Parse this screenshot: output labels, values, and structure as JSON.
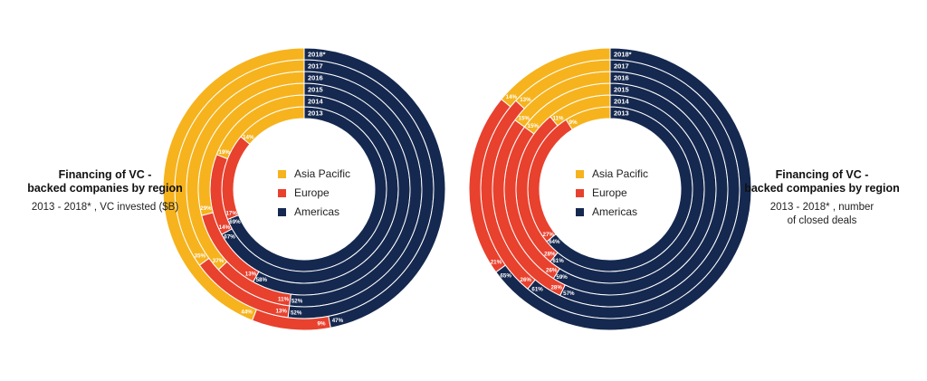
{
  "colors": {
    "Asia Pacific": "#f6b31d",
    "Europe": "#e8412e",
    "Americas": "#15284f",
    "divider": "#ffffff"
  },
  "left": {
    "title": "Financing of VC -\nbacked companies by region",
    "subtitle": "2013 - 2018* , VC invested ($B)"
  },
  "right": {
    "title": "Financing of VC -\nbacked companies by region",
    "subtitle": "2013 - 2018* , number\nof closed deals"
  },
  "legend": [
    "Asia Pacific",
    "Europe",
    "Americas"
  ],
  "chart_data": [
    {
      "type": "pie",
      "subtype": "concentric-donut",
      "title": "Financing of VC - backed companies by region",
      "subtitle": "2013 - 2018* , VC invested ($B)",
      "categories": [
        "Asia Pacific",
        "Europe",
        "Americas"
      ],
      "rings": [
        "2013",
        "2014",
        "2015",
        "2016",
        "2017",
        "2018*"
      ],
      "series": [
        {
          "name": "2013",
          "values": [
            14,
            17,
            69
          ],
          "labels": [
            "14%",
            "17%",
            "69%"
          ]
        },
        {
          "name": "2014",
          "values": [
            19,
            14,
            67
          ],
          "labels": [
            "19%",
            "14%",
            "67%"
          ]
        },
        {
          "name": "2015",
          "values": [
            29,
            13,
            58
          ],
          "labels": [
            "29%",
            "13%",
            "58%"
          ]
        },
        {
          "name": "2016",
          "values": [
            37,
            11,
            52
          ],
          "labels": [
            "37%",
            "11%",
            "52%"
          ]
        },
        {
          "name": "2017",
          "values": [
            35,
            13,
            52
          ],
          "labels": [
            "35%",
            "13%",
            "52%"
          ]
        },
        {
          "name": "2018*",
          "values": [
            44,
            9,
            47
          ],
          "labels": [
            "44%",
            "9%",
            "47%"
          ]
        }
      ]
    },
    {
      "type": "pie",
      "subtype": "concentric-donut",
      "title": "Financing of VC - backed companies by region",
      "subtitle": "2013 - 2018* , number of closed deals",
      "categories": [
        "Asia Pacific",
        "Europe",
        "Americas"
      ],
      "rings": [
        "2013",
        "2014",
        "2015",
        "2016",
        "2017",
        "2018*"
      ],
      "series": [
        {
          "name": "2013",
          "values": [
            9,
            27,
            64
          ],
          "labels": [
            "9%",
            "27%",
            "64%"
          ]
        },
        {
          "name": "2014",
          "values": [
            11,
            28,
            61
          ],
          "labels": [
            "11%",
            "28%",
            "61%"
          ]
        },
        {
          "name": "2015",
          "values": [
            15,
            26,
            59
          ],
          "labels": [
            "15%",
            "26%",
            "59%"
          ]
        },
        {
          "name": "2016",
          "values": [
            15,
            28,
            57
          ],
          "labels": [
            "15%",
            "28%",
            "57%"
          ]
        },
        {
          "name": "2017",
          "values": [
            13,
            26,
            61
          ],
          "labels": [
            "13%",
            "26%",
            "61%"
          ]
        },
        {
          "name": "2018*",
          "values": [
            14,
            21,
            65
          ],
          "labels": [
            "14%",
            "21%",
            "65%"
          ]
        }
      ]
    }
  ]
}
